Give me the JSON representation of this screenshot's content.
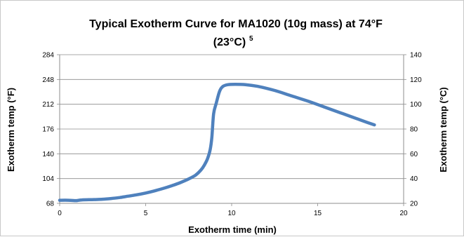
{
  "chart_data": {
    "type": "line",
    "title": "Typical Exotherm Curve for MA1020 (10g mass) at 74°F (23°C)",
    "title_superscript": "5",
    "xlabel": "Exotherm time (min)",
    "ylabel": "Exotherm temp (°F)",
    "y2label": "Exotherm temp (°C)",
    "xlim": [
      0,
      20
    ],
    "ylim": [
      68,
      284
    ],
    "y2lim": [
      20,
      140
    ],
    "x_ticks": [
      "0",
      "5",
      "10",
      "15",
      "20"
    ],
    "y_ticks": [
      "68",
      "104",
      "140",
      "176",
      "212",
      "248",
      "284"
    ],
    "y2_ticks": [
      "20",
      "40",
      "60",
      "80",
      "100",
      "120",
      "140"
    ],
    "grid": "horizontal",
    "legend": "none",
    "series": [
      {
        "color": "#4f81bd",
        "x": [
          0,
          0.5,
          0.9,
          1.0,
          1.3,
          2.0,
          2.5,
          3.0,
          3.5,
          4.0,
          4.5,
          5.0,
          5.5,
          6.0,
          6.5,
          7.0,
          7.5,
          7.9,
          8.2,
          8.4,
          8.6,
          8.75,
          8.85,
          8.95,
          9.1,
          9.3,
          9.5,
          9.8,
          10.2,
          10.8,
          11.5,
          12.5,
          13.5,
          14.5,
          15.5,
          16.5,
          17.5,
          18.3
        ],
        "y": [
          72.5,
          72.5,
          72,
          72,
          73,
          73.5,
          74,
          75,
          76.5,
          78.5,
          80.5,
          83,
          86,
          89.5,
          93.5,
          98,
          103.5,
          109,
          116,
          123,
          133,
          146,
          164,
          198,
          213,
          231,
          238,
          240.5,
          241,
          240.5,
          238,
          232,
          224,
          216,
          207,
          198,
          189,
          182
        ]
      }
    ]
  }
}
